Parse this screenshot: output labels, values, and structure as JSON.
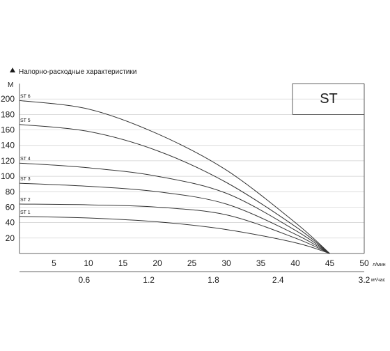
{
  "chart_data": {
    "type": "line",
    "title": "Напорно-расходные характеристики",
    "model_label": "ST",
    "y_unit": "М",
    "x_unit": "л/мин",
    "x2_unit": "м³/час",
    "ylim": [
      0,
      220
    ],
    "xlim": [
      0,
      50
    ],
    "y_ticks": [
      20,
      40,
      60,
      80,
      100,
      120,
      140,
      160,
      180,
      200
    ],
    "x_ticks": [
      5,
      10,
      15,
      20,
      25,
      30,
      35,
      40,
      45,
      50
    ],
    "x2_ticks": [
      {
        "label": "0.6",
        "value": 0.6
      },
      {
        "label": "1.2",
        "value": 1.2
      },
      {
        "label": "1.8",
        "value": 1.8
      },
      {
        "label": "2.4",
        "value": 2.4
      },
      {
        "label": "3.2",
        "value": 3.2
      }
    ],
    "grid": true,
    "series": [
      {
        "name": "ST 6",
        "x": [
          0,
          10,
          20,
          30,
          40,
          45
        ],
        "y": [
          198,
          187,
          155,
          108,
          40,
          0
        ]
      },
      {
        "name": "ST 5",
        "x": [
          0,
          10,
          20,
          30,
          40,
          45
        ],
        "y": [
          167,
          158,
          133,
          92,
          35,
          0
        ]
      },
      {
        "name": "ST 4",
        "x": [
          0,
          10,
          20,
          30,
          40,
          45
        ],
        "y": [
          117,
          111,
          100,
          78,
          30,
          0
        ]
      },
      {
        "name": "ST 3",
        "x": [
          0,
          10,
          20,
          30,
          40,
          45
        ],
        "y": [
          91,
          87,
          80,
          64,
          25,
          0
        ]
      },
      {
        "name": "ST 2",
        "x": [
          0,
          10,
          20,
          30,
          40,
          45
        ],
        "y": [
          64,
          63,
          60,
          50,
          20,
          0
        ]
      },
      {
        "name": "ST 1",
        "x": [
          0,
          10,
          20,
          30,
          40,
          45
        ],
        "y": [
          48,
          46,
          41,
          31,
          14,
          0
        ]
      }
    ]
  }
}
